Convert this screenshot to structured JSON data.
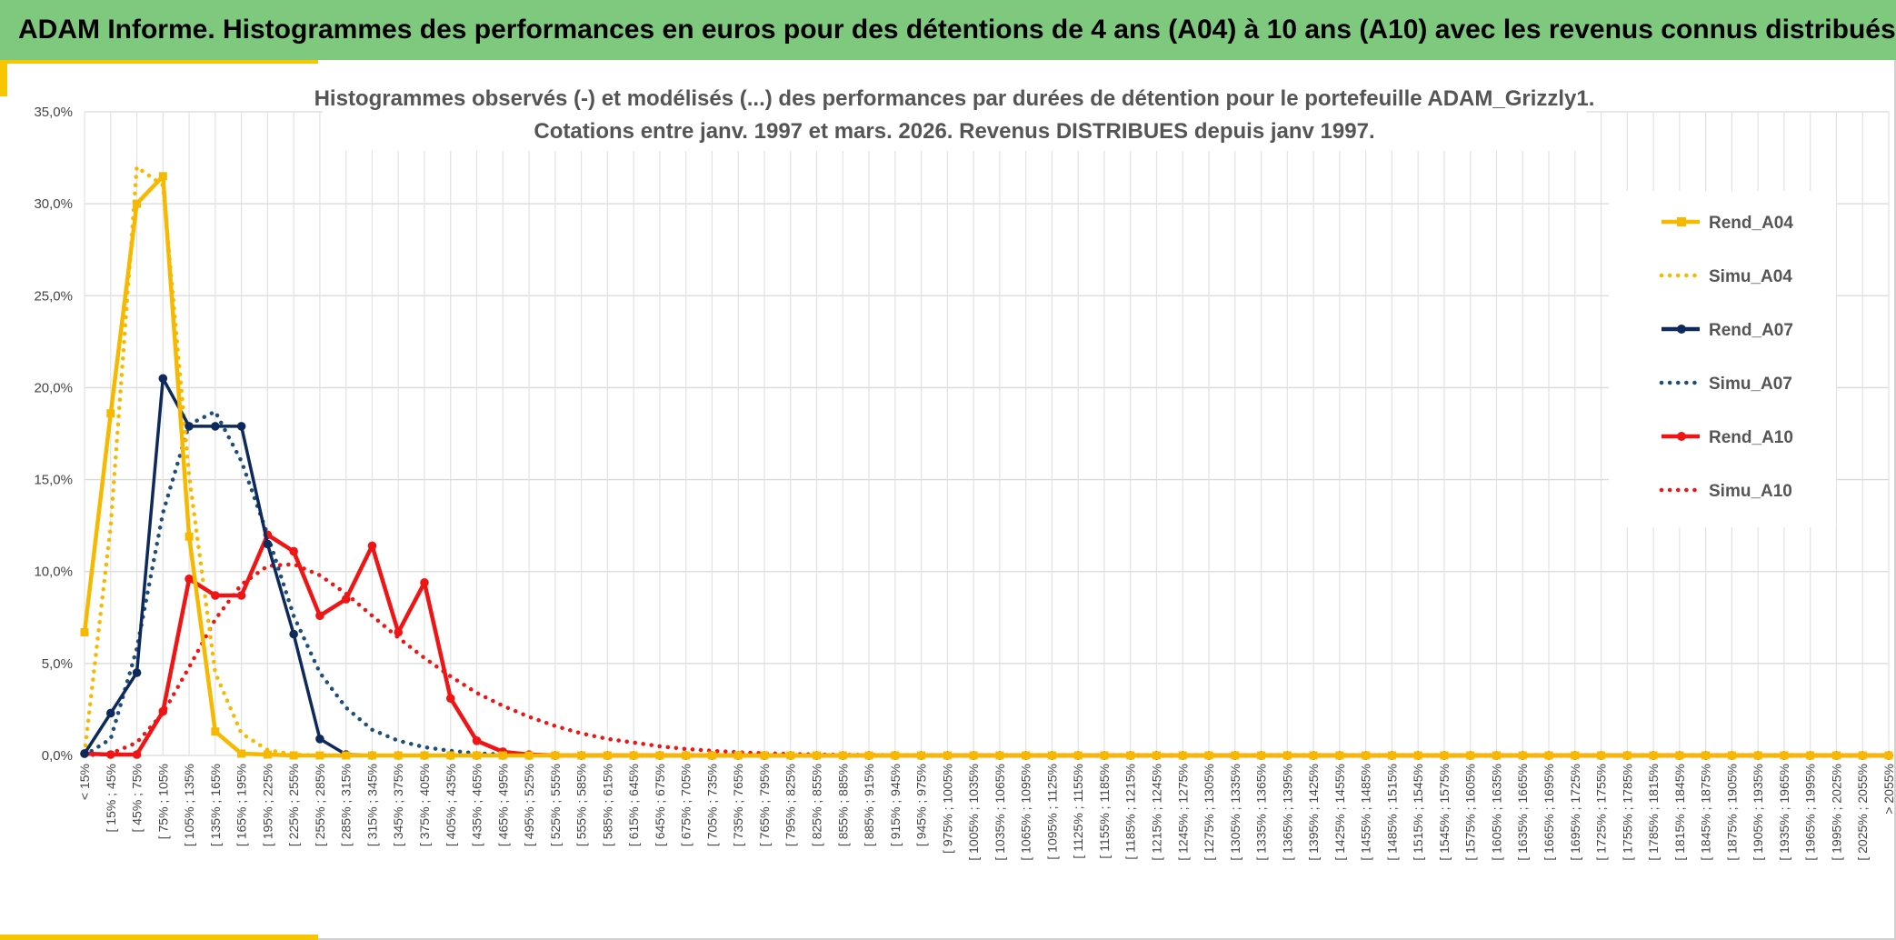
{
  "header": {
    "title": "ADAM Informe. Histogrammes des performances en euros pour des détentions de 4 ans (A04) à 10 ans (A10) avec les revenus connus distribués"
  },
  "colors": {
    "header_bg": "#7fc97f",
    "accent": "#f7c600",
    "A04": "#f7b900",
    "A07": "#0e2a5c",
    "Simu_A07": "#1f4e79",
    "A10": "#f01414"
  },
  "chart_data": {
    "type": "line",
    "title_lines": [
      "Histogrammes observés (-) et modélisés (...) des performances par durées de détention pour le portefeuille ADAM_Grizzly1.",
      "Cotations entre janv. 1997 et mars. 2026. Revenus DISTRIBUES depuis janv 1997."
    ],
    "y_ticks": [
      "0,0%",
      "5,0%",
      "10,0%",
      "15,0%",
      "20,0%",
      "25,0%",
      "30,0%",
      "35,0%"
    ],
    "ylim": [
      0,
      35
    ],
    "grid": true,
    "legend_position": "right",
    "categories": [
      "< 15%",
      "[ 15% ; 45%",
      "[ 45% ; 75%",
      "[ 75% ; 105%",
      "[ 105% ; 135%",
      "[ 135% ; 165%",
      "[ 165% ; 195%",
      "[ 195% ; 225%",
      "[ 225% ; 255%",
      "[ 255% ; 285%",
      "[ 285% ; 315%",
      "[ 315% ; 345%",
      "[ 345% ; 375%",
      "[ 375% ; 405%",
      "[ 405% ; 435%",
      "[ 435% ; 465%",
      "[ 465% ; 495%",
      "[ 495% ; 525%",
      "[ 525% ; 555%",
      "[ 555% ; 585%",
      "[ 585% ; 615%",
      "[ 615% ; 645%",
      "[ 645% ; 675%",
      "[ 675% ; 705%",
      "[ 705% ; 735%",
      "[ 735% ; 765%",
      "[ 765% ; 795%",
      "[ 795% ; 825%",
      "[ 825% ; 855%",
      "[ 855% ; 885%",
      "[ 885% ; 915%",
      "[ 915% ; 945%",
      "[ 945% ; 975%",
      "[ 975% ; 1005%",
      "[ 1005% ; 1035%",
      "[ 1035% ; 1065%",
      "[ 1065% ; 1095%",
      "[ 1095% ; 1125%",
      "[ 1125% ; 1155%",
      "[ 1155% ; 1185%",
      "[ 1185% ; 1215%",
      "[ 1215% ; 1245%",
      "[ 1245% ; 1275%",
      "[ 1275% ; 1305%",
      "[ 1305% ; 1335%",
      "[ 1335% ; 1365%",
      "[ 1365% ; 1395%",
      "[ 1395% ; 1425%",
      "[ 1425% ; 1455%",
      "[ 1455% ; 1485%",
      "[ 1485% ; 1515%",
      "[ 1515% ; 1545%",
      "[ 1545% ; 1575%",
      "[ 1575% ; 1605%",
      "[ 1605% ; 1635%",
      "[ 1635% ; 1665%",
      "[ 1665% ; 1695%",
      "[ 1695% ; 1725%",
      "[ 1725% ; 1755%",
      "[ 1755% ; 1785%",
      "[ 1785% ; 1815%",
      "[ 1815% ; 1845%",
      "[ 1845% ; 1875%",
      "[ 1875% ; 1905%",
      "[ 1905% ; 1935%",
      "[ 1935% ; 1965%",
      "[ 1965% ; 1995%",
      "[ 1995% ; 2025%",
      "[ 2025% ; 2055%",
      "> 2055%"
    ],
    "series": [
      {
        "name": "Rend_A04",
        "style": "solid",
        "marker": "square",
        "color": "#f7b900",
        "values": [
          6.7,
          18.6,
          30.0,
          31.5,
          11.9,
          1.3,
          0.1,
          0.05,
          0,
          0,
          0,
          0,
          0,
          0,
          0,
          0,
          0,
          0,
          0,
          0,
          0,
          0,
          0,
          0,
          0,
          0,
          0,
          0,
          0,
          0,
          0,
          0,
          0,
          0,
          0,
          0,
          0,
          0,
          0,
          0,
          0,
          0,
          0,
          0,
          0,
          0,
          0,
          0,
          0,
          0,
          0,
          0,
          0,
          0,
          0,
          0,
          0,
          0,
          0,
          0,
          0,
          0,
          0,
          0,
          0,
          0,
          0,
          0,
          0,
          0
        ]
      },
      {
        "name": "Simu_A04",
        "style": "dotted",
        "marker": "none",
        "color": "#f7b900",
        "values": [
          0.1,
          12.5,
          32.0,
          31.0,
          15.2,
          4.5,
          1.2,
          0.3,
          0.05,
          0,
          0,
          0,
          0,
          0,
          0,
          0,
          0,
          0,
          0,
          0,
          0,
          0,
          0,
          0,
          0,
          0,
          0,
          0,
          0,
          0,
          0,
          0,
          0,
          0,
          0,
          0,
          0,
          0,
          0,
          0,
          0,
          0,
          0,
          0,
          0,
          0,
          0,
          0,
          0,
          0,
          0,
          0,
          0,
          0,
          0,
          0,
          0,
          0,
          0,
          0,
          0,
          0,
          0,
          0,
          0,
          0,
          0,
          0,
          0,
          0
        ]
      },
      {
        "name": "Rend_A07",
        "style": "solid",
        "marker": "circle",
        "color": "#0e2a5c",
        "values": [
          0.1,
          2.3,
          4.5,
          20.5,
          17.9,
          17.9,
          17.9,
          11.5,
          6.6,
          0.9,
          0.05,
          0,
          0,
          0,
          0,
          0,
          0,
          0,
          0,
          0,
          0,
          0,
          0,
          0,
          0,
          0,
          0,
          0,
          0,
          0,
          0,
          0,
          0,
          0,
          0,
          0,
          0,
          0,
          0,
          0,
          0,
          0,
          0,
          0,
          0,
          0,
          0,
          0,
          0,
          0,
          0,
          0,
          0,
          0,
          0,
          0,
          0,
          0,
          0,
          0,
          0,
          0,
          0,
          0,
          0,
          0,
          0,
          0,
          0,
          0
        ]
      },
      {
        "name": "Simu_A07",
        "style": "dotted",
        "marker": "none",
        "color": "#1f4e79",
        "values": [
          0,
          0.9,
          5.8,
          13.2,
          18.0,
          18.7,
          16.0,
          12.0,
          7.6,
          4.5,
          2.6,
          1.4,
          0.8,
          0.45,
          0.25,
          0.12,
          0.06,
          0.02,
          0,
          0,
          0,
          0,
          0,
          0,
          0,
          0,
          0,
          0,
          0,
          0,
          0,
          0,
          0,
          0,
          0,
          0,
          0,
          0,
          0,
          0,
          0,
          0,
          0,
          0,
          0,
          0,
          0,
          0,
          0,
          0,
          0,
          0,
          0,
          0,
          0,
          0,
          0,
          0,
          0,
          0,
          0,
          0,
          0,
          0,
          0,
          0,
          0,
          0,
          0,
          0
        ]
      },
      {
        "name": "Rend_A10",
        "style": "solid",
        "marker": "circle",
        "color": "#f01414",
        "values": [
          0.1,
          0.05,
          0.05,
          2.4,
          9.6,
          8.7,
          8.7,
          12.0,
          11.1,
          7.6,
          8.5,
          11.4,
          6.7,
          9.4,
          3.1,
          0.8,
          0.2,
          0.05,
          0,
          0,
          0,
          0,
          0,
          0,
          0,
          0,
          0,
          0,
          0,
          0,
          0,
          0,
          0,
          0,
          0,
          0,
          0,
          0,
          0,
          0,
          0,
          0,
          0,
          0,
          0,
          0,
          0,
          0,
          0,
          0,
          0,
          0,
          0,
          0,
          0,
          0,
          0,
          0,
          0,
          0,
          0,
          0,
          0,
          0,
          0,
          0,
          0,
          0,
          0,
          0
        ]
      },
      {
        "name": "Simu_A10",
        "style": "dotted",
        "marker": "none",
        "color": "#f01414",
        "values": [
          0,
          0.1,
          0.7,
          2.3,
          4.8,
          7.4,
          9.3,
          10.3,
          10.4,
          9.8,
          8.8,
          7.6,
          6.4,
          5.3,
          4.3,
          3.4,
          2.7,
          2.1,
          1.6,
          1.2,
          0.9,
          0.7,
          0.5,
          0.35,
          0.25,
          0.18,
          0.12,
          0.08,
          0.05,
          0.03,
          0.02,
          0.01,
          0,
          0,
          0,
          0,
          0,
          0,
          0,
          0,
          0,
          0,
          0,
          0,
          0,
          0,
          0,
          0,
          0,
          0,
          0,
          0,
          0,
          0,
          0,
          0,
          0,
          0,
          0,
          0,
          0,
          0,
          0,
          0,
          0,
          0,
          0,
          0,
          0,
          0
        ]
      }
    ]
  }
}
